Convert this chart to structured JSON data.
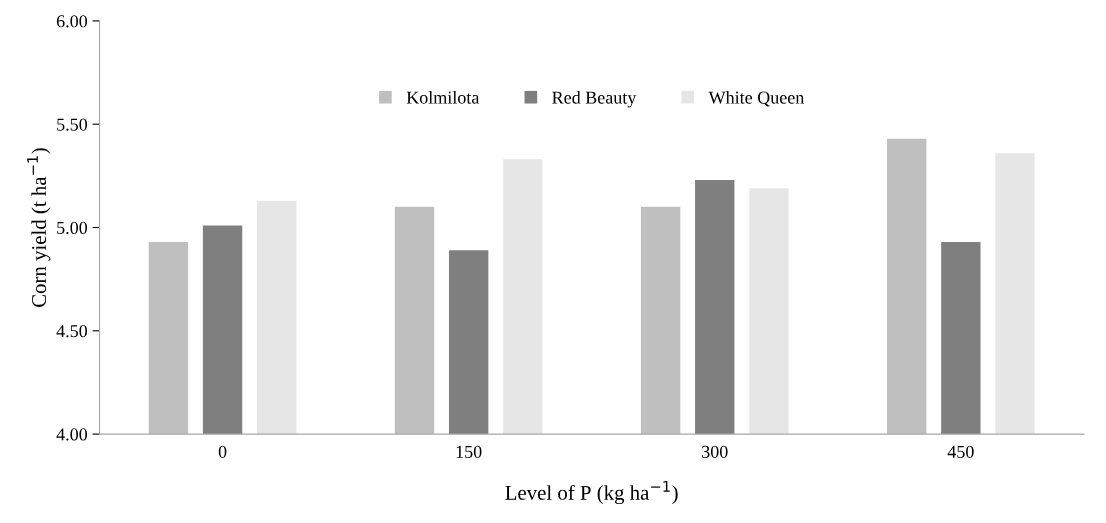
{
  "chart_data": {
    "type": "bar",
    "categories": [
      "0",
      "150",
      "300",
      "450"
    ],
    "series": [
      {
        "name": "Kolmilota",
        "color": "#bfbfbf",
        "values": [
          4.93,
          5.1,
          5.1,
          5.43
        ]
      },
      {
        "name": "Red Beauty",
        "color": "#7f7f7f",
        "values": [
          5.01,
          4.89,
          5.23,
          4.93
        ]
      },
      {
        "name": "White Queen",
        "color": "#e6e6e6",
        "values": [
          5.13,
          5.33,
          5.19,
          5.36
        ]
      }
    ],
    "xlabel": "Level of P (kg ha$^{−1}$)",
    "ylabel": "Corn yield (t ha$^{−1}$)",
    "ylim": [
      4,
      6
    ],
    "yticks": [
      {
        "value": 4,
        "label": "4.00"
      },
      {
        "value": 4.5,
        "label": "4.50"
      },
      {
        "value": 5,
        "label": "5.00"
      },
      {
        "value": 5.5,
        "label": "5.50"
      },
      {
        "value": 6,
        "label": "6.00"
      }
    ],
    "legend": "top",
    "grid": false
  }
}
